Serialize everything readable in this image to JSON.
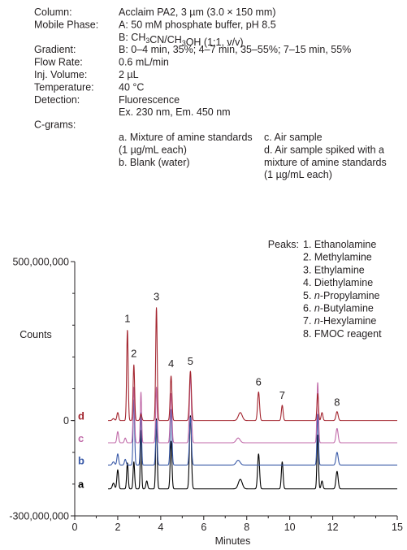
{
  "conditions": [
    {
      "label": "Column:",
      "lines": [
        "Acclaim PA2, 3 µm (3.0 × 150 mm)"
      ]
    },
    {
      "label": "Mobile Phase:",
      "lines": [
        "A: 50 mM phosphate buffer, pH 8.5",
        "B: CH3CN/CH3OH (1:1, v/v)"
      ]
    },
    {
      "label": "Gradient:",
      "lines": [
        "B: 0–4 min, 35%; 4–7 min, 35–55%; 7–15 min, 55%"
      ]
    },
    {
      "label": "Flow Rate:",
      "lines": [
        "0.6 mL/min"
      ]
    },
    {
      "label": "Inj. Volume:",
      "lines": [
        "2 µL"
      ]
    },
    {
      "label": "Temperature:",
      "lines": [
        "40  °C"
      ]
    },
    {
      "label": "Detection:",
      "lines": [
        "Fluorescence",
        "Ex. 230 nm, Em. 450 nm"
      ]
    },
    {
      "label": "C-grams:",
      "lines": []
    }
  ],
  "samples": {
    "col1": [
      "a. Mixture of amine standards",
      "   (1 µg/mL each)",
      "b. Blank (water)"
    ],
    "col2": [
      "c. Air sample",
      "d. Air sample spiked with a",
      "   mixture of amine standards",
      "   (1 µg/mL each)"
    ]
  },
  "peaks_title": "Peaks:",
  "peaks": [
    "1. Ethanolamine",
    "2. Methylamine",
    "3. Ethylamine",
    "4. Diethylamine",
    "5. n-Propylamine",
    "6. n-Butylamine",
    "7. n-Hexylamine",
    "8. FMOC reagent"
  ],
  "chart_data": {
    "type": "line",
    "xlabel": "Minutes",
    "ylabel": "Counts",
    "xlim": [
      0,
      15
    ],
    "ylim": [
      -300000000,
      500000000
    ],
    "x_ticks": [
      0,
      2,
      4,
      6,
      8,
      10,
      12,
      15
    ],
    "y_ticks": [
      {
        "value": 500000000,
        "label": "500,000,000"
      },
      {
        "value": 0,
        "label": "0"
      },
      {
        "value": -300000000,
        "label": "-300,000,000"
      }
    ],
    "series": [
      {
        "name": "a",
        "color": "#000000",
        "baseline": -215000000,
        "peaks": [
          [
            1.8,
            18000000,
            0.05
          ],
          [
            2.0,
            60000000,
            0.04
          ],
          [
            2.45,
            82000000,
            0.035
          ],
          [
            2.75,
            85000000,
            0.035
          ],
          [
            3.08,
            185000000,
            0.03
          ],
          [
            3.35,
            25000000,
            0.04
          ],
          [
            3.8,
            220000000,
            0.035
          ],
          [
            4.48,
            150000000,
            0.04
          ],
          [
            5.38,
            230000000,
            0.045
          ],
          [
            7.7,
            30000000,
            0.09
          ],
          [
            8.55,
            110000000,
            0.045
          ],
          [
            9.65,
            85000000,
            0.04
          ],
          [
            11.3,
            170000000,
            0.035
          ],
          [
            11.5,
            25000000,
            0.04
          ],
          [
            12.2,
            55000000,
            0.05
          ]
        ]
      },
      {
        "name": "b",
        "color": "#3a5aa8",
        "baseline": -140000000,
        "peaks": [
          [
            1.8,
            10000000,
            0.05
          ],
          [
            2.0,
            35000000,
            0.04
          ],
          [
            2.35,
            18000000,
            0.04
          ],
          [
            2.75,
            205000000,
            0.035
          ],
          [
            3.08,
            165000000,
            0.03
          ],
          [
            3.8,
            140000000,
            0.035
          ],
          [
            4.48,
            175000000,
            0.04
          ],
          [
            5.38,
            150000000,
            0.045
          ],
          [
            5.38,
            0,
            0.045
          ],
          [
            7.6,
            15000000,
            0.09
          ],
          [
            11.3,
            160000000,
            0.035
          ],
          [
            12.2,
            40000000,
            0.05
          ]
        ]
      },
      {
        "name": "c",
        "color": "#c06aa8",
        "baseline": -70000000,
        "peaks": [
          [
            2.0,
            35000000,
            0.04
          ],
          [
            2.35,
            15000000,
            0.04
          ],
          [
            2.75,
            175000000,
            0.035
          ],
          [
            3.08,
            160000000,
            0.03
          ],
          [
            3.8,
            175000000,
            0.035
          ],
          [
            4.48,
            155000000,
            0.04
          ],
          [
            5.38,
            210000000,
            0.045
          ],
          [
            7.6,
            15000000,
            0.09
          ],
          [
            11.3,
            190000000,
            0.035
          ],
          [
            12.2,
            45000000,
            0.05
          ]
        ]
      },
      {
        "name": "d",
        "color": "#a3252f",
        "baseline": 0,
        "peaks": [
          [
            1.8,
            6000000,
            0.05
          ],
          [
            2.0,
            25000000,
            0.04
          ],
          [
            2.45,
            285000000,
            0.035
          ],
          [
            2.75,
            175000000,
            0.035
          ],
          [
            3.08,
            20000000,
            0.04
          ],
          [
            3.8,
            355000000,
            0.035
          ],
          [
            4.48,
            140000000,
            0.04
          ],
          [
            5.38,
            155000000,
            0.045
          ],
          [
            7.7,
            25000000,
            0.09
          ],
          [
            8.55,
            90000000,
            0.045
          ],
          [
            9.65,
            48000000,
            0.04
          ],
          [
            11.3,
            85000000,
            0.035
          ],
          [
            11.5,
            25000000,
            0.04
          ],
          [
            12.2,
            28000000,
            0.05
          ]
        ]
      }
    ],
    "peak_labels": [
      {
        "text": "1",
        "x": 2.45,
        "y": 310000000
      },
      {
        "text": "2",
        "x": 2.75,
        "y": 200000000
      },
      {
        "text": "3",
        "x": 3.8,
        "y": 378000000
      },
      {
        "text": "4",
        "x": 4.48,
        "y": 168000000
      },
      {
        "text": "5",
        "x": 5.38,
        "y": 175000000
      },
      {
        "text": "6",
        "x": 8.55,
        "y": 110000000
      },
      {
        "text": "7",
        "x": 9.65,
        "y": 68000000
      },
      {
        "text": "8",
        "x": 12.2,
        "y": 46000000
      }
    ],
    "colors": {
      "axis": "#231f20",
      "a": "#000000",
      "b": "#3a5aa8",
      "c": "#c06aa8",
      "d": "#a3252f"
    }
  }
}
